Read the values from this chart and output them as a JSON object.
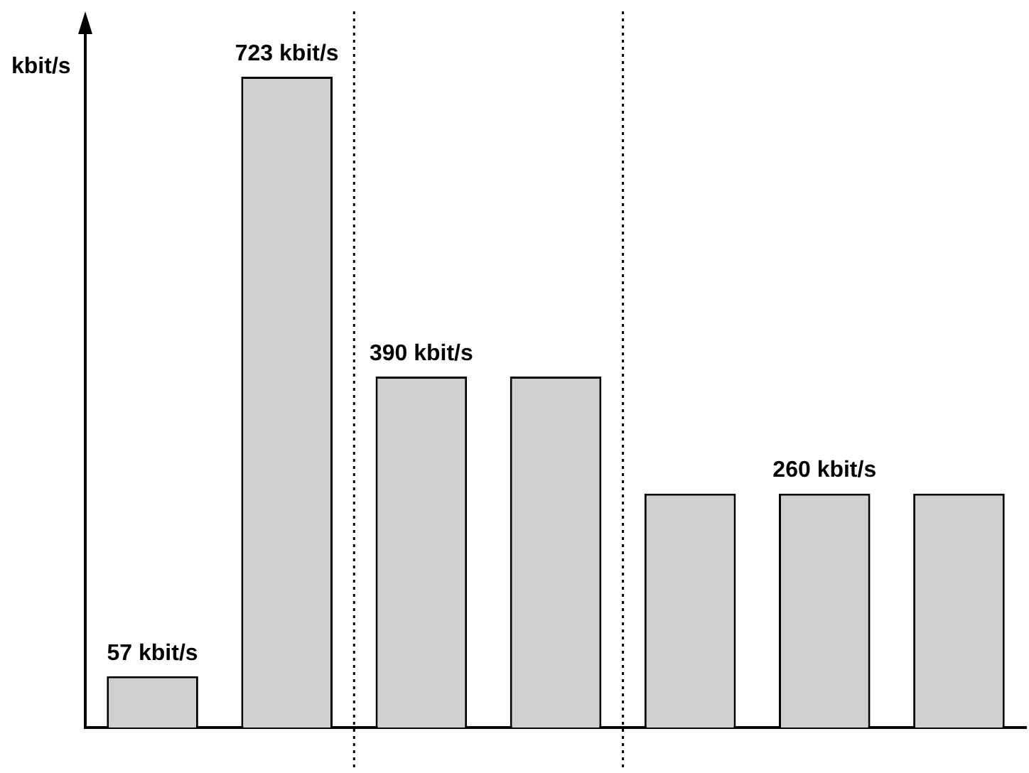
{
  "chart_data": {
    "type": "bar",
    "ylabel": "kbit/s",
    "categories": [
      null,
      null,
      null,
      null,
      null,
      null,
      null
    ],
    "values": [
      57,
      723,
      390,
      390,
      260,
      260,
      260
    ],
    "color": "#d0d0d0",
    "value_labels": [
      "57 kbit/s",
      "723 kbit/s",
      "390 kbit/s",
      null,
      null,
      "260 kbit/s",
      null
    ],
    "tick_labels": false
  }
}
